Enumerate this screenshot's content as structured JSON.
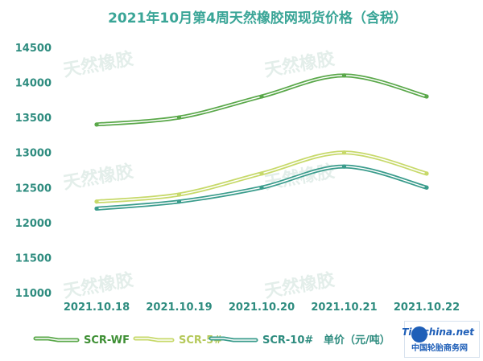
{
  "chart_data": {
    "type": "line",
    "title": "2021年10月第4周天然橡胶网现货价格（含税）",
    "categories": [
      "2021.10.18",
      "2021.10.19",
      "2021.10.20",
      "2021.10.21",
      "2021.10.22"
    ],
    "yticks": [
      11000,
      11500,
      12000,
      12500,
      13000,
      13500,
      14000,
      14500
    ],
    "ylim": [
      11000,
      14500
    ],
    "grid": false,
    "legend_position": "bottom",
    "series": [
      {
        "name": "SCR-WF",
        "color": "#5aa84a",
        "values": [
          13400,
          13500,
          13800,
          14100,
          13800
        ]
      },
      {
        "name": "SCR-5#",
        "color": "#c7d96a",
        "values": [
          12300,
          12400,
          12700,
          13000,
          12700
        ]
      },
      {
        "name": "SCR-10#",
        "color": "#3a9c8c",
        "values": [
          12200,
          12300,
          12500,
          12800,
          12500
        ]
      }
    ],
    "unit_label": "单价（元/吨）"
  },
  "logo": {
    "name": "Tirechina.net",
    "subtitle": "中国轮胎商务网"
  }
}
